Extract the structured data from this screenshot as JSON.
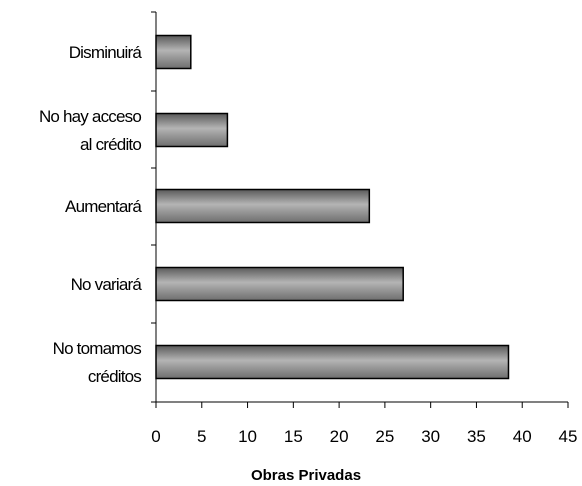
{
  "chart_data": {
    "type": "bar",
    "orientation": "horizontal",
    "categories": [
      "Disminuirá",
      "No hay acceso al crédito",
      "Aumentará",
      "No variará",
      "No tomamos créditos"
    ],
    "category_lines": [
      [
        "Disminuirá"
      ],
      [
        "No hay acceso",
        "al crédito"
      ],
      [
        "Aumentará"
      ],
      [
        "No variará"
      ],
      [
        "No tomamos",
        "créditos"
      ]
    ],
    "values": [
      3.8,
      7.8,
      23.3,
      27.0,
      38.5
    ],
    "title": "",
    "xlabel": "Obras Privadas",
    "ylabel": "",
    "xlim": [
      0,
      45
    ],
    "xticks": [
      0,
      5,
      10,
      15,
      20,
      25,
      30,
      35,
      40,
      45
    ],
    "grid": false,
    "legend": "none",
    "bar_gradient": [
      "#5a5a5a",
      "#b4b4b4",
      "#6e6e6e"
    ],
    "bar_stroke": "#000000"
  }
}
